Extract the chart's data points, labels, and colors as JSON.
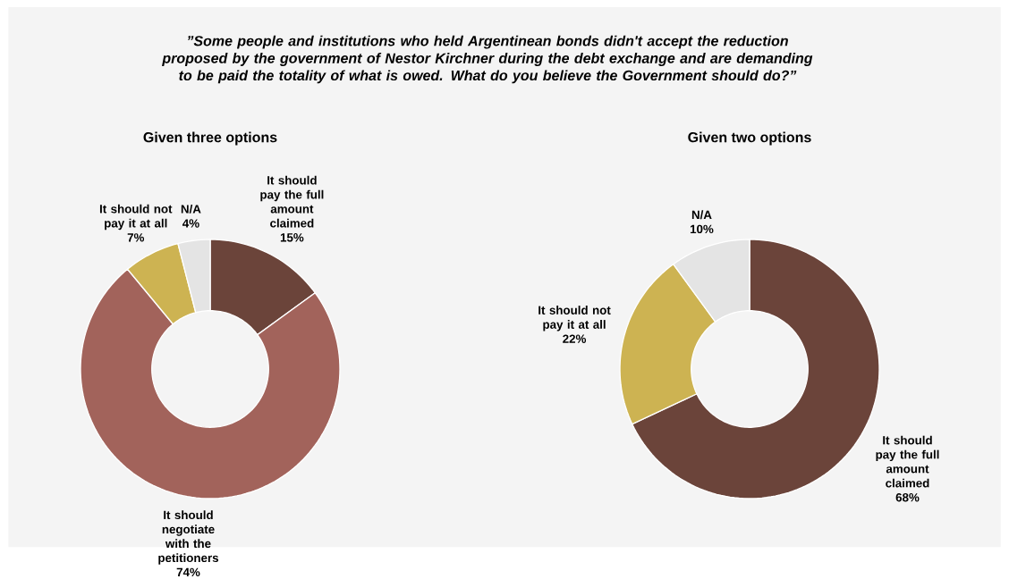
{
  "chart_data": [
    {
      "type": "donut",
      "title": "Given three options",
      "annotations": [
        "”Some people and institutions who held Argentinean bonds didn't accept the reduction proposed by the government of Nestor Kirchner during the debt exchange and are demanding to be paid the totality of what is owed. What do you believe the Government should do?”"
      ],
      "categories": [
        "It should pay the full amount claimed",
        "It should negotiate with the petitioners",
        "It should not pay it at all",
        "N/A"
      ],
      "values": [
        15,
        74,
        7,
        4
      ],
      "value_labels": [
        "15%",
        "74%",
        "7%",
        "4%"
      ],
      "colors": [
        "#6b443a",
        "#a2635b",
        "#cdb352",
        "#e4e4e4"
      ]
    },
    {
      "type": "donut",
      "title": "Given two options",
      "categories": [
        "It should pay the full amount claimed",
        "It should not pay it at all",
        "N/A"
      ],
      "values": [
        68,
        22,
        10
      ],
      "value_labels": [
        "68%",
        "22%",
        "10%"
      ],
      "colors": [
        "#6b443a",
        "#cdb352",
        "#e4e4e4"
      ]
    }
  ]
}
